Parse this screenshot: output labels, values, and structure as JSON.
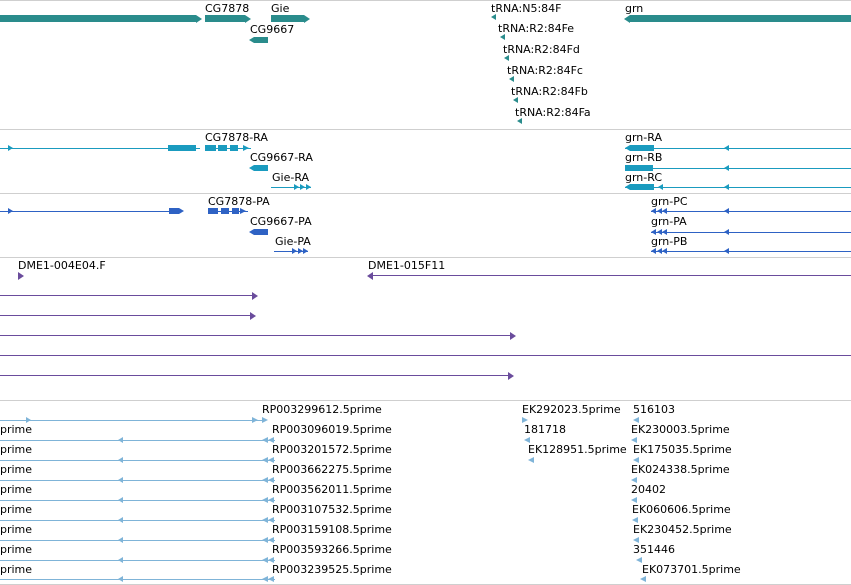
{
  "colors": {
    "gene": "#2a8c8c",
    "transcript": "#1a9bbf",
    "protein": "#2e62c4",
    "clone": "#6a4c9c",
    "est": "#7fb4d8",
    "separator": "#cfcfcf"
  },
  "genes_track": {
    "labels": [
      "CG7878",
      "Gie",
      "CG9667",
      "tRNA:N5:84F",
      "tRNA:R2:84Fe",
      "tRNA:R2:84Fd",
      "tRNA:R2:84Fc",
      "tRNA:R2:84Fb",
      "tRNA:R2:84Fa",
      "grn"
    ]
  },
  "transcripts_track": {
    "labels": [
      "CG7878-RA",
      "CG9667-RA",
      "Gie-RA",
      "grn-RA",
      "grn-RB",
      "grn-RC"
    ]
  },
  "proteins_track": {
    "labels": [
      "CG7878-PA",
      "CG9667-PA",
      "Gie-PA",
      "grn-PC",
      "grn-PA",
      "grn-PB"
    ]
  },
  "clones_track": {
    "labels": [
      "DME1-004E04.F",
      "DME1-015F11"
    ]
  },
  "est_track": {
    "labels": [
      "RP003299612.5prime",
      "RP003096019.5prime",
      "RP003201572.5prime",
      "RP003662275.5prime",
      "RP003562011.5prime",
      "RP003107532.5prime",
      "RP003159108.5prime",
      "RP003593266.5prime",
      "RP003239525.5prime",
      "EK292023.5prime",
      "516103",
      "181718",
      "EK230003.5prime",
      "EK128951.5prime",
      "EK175035.5prime",
      "EK024338.5prime",
      "20402",
      "EK060606.5prime",
      "EK230452.5prime",
      "351446",
      "EK073701.5prime"
    ],
    "left_clipped_labels": [
      "prime",
      "prime",
      "prime",
      "prime",
      "prime",
      "prime",
      "prime",
      "prime"
    ]
  }
}
